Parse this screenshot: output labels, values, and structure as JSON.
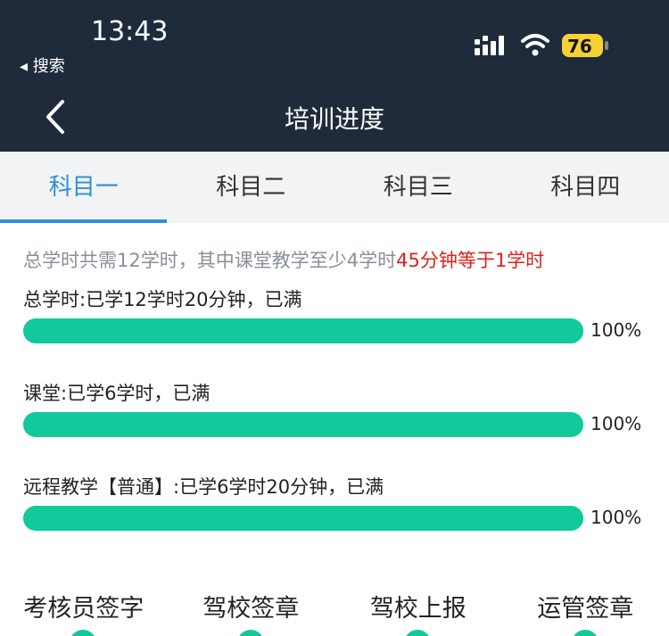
{
  "status_bar": {
    "time": "13:43",
    "back_app": "搜索",
    "battery": "76"
  },
  "nav": {
    "title": "培训进度"
  },
  "tabs": [
    "科目一",
    "科目二",
    "科目三",
    "科目四"
  ],
  "active_tab": 0,
  "info": {
    "text": "总学时共需12学时，其中课堂教学至少4学时",
    "highlight": "45分钟等于1学时"
  },
  "progress": [
    {
      "label": "总学时:已学12学时20分钟，已满",
      "value": 100,
      "value_label": "100%"
    },
    {
      "label": "课堂:已学6学时，已满",
      "value": 100,
      "value_label": "100%"
    },
    {
      "label": "远程教学【普通】:已学6学时20分钟，已满",
      "value": 100,
      "value_label": "100%"
    }
  ],
  "signatures": [
    "考核员签字",
    "驾校签章",
    "驾校上报",
    "运管签章"
  ]
}
